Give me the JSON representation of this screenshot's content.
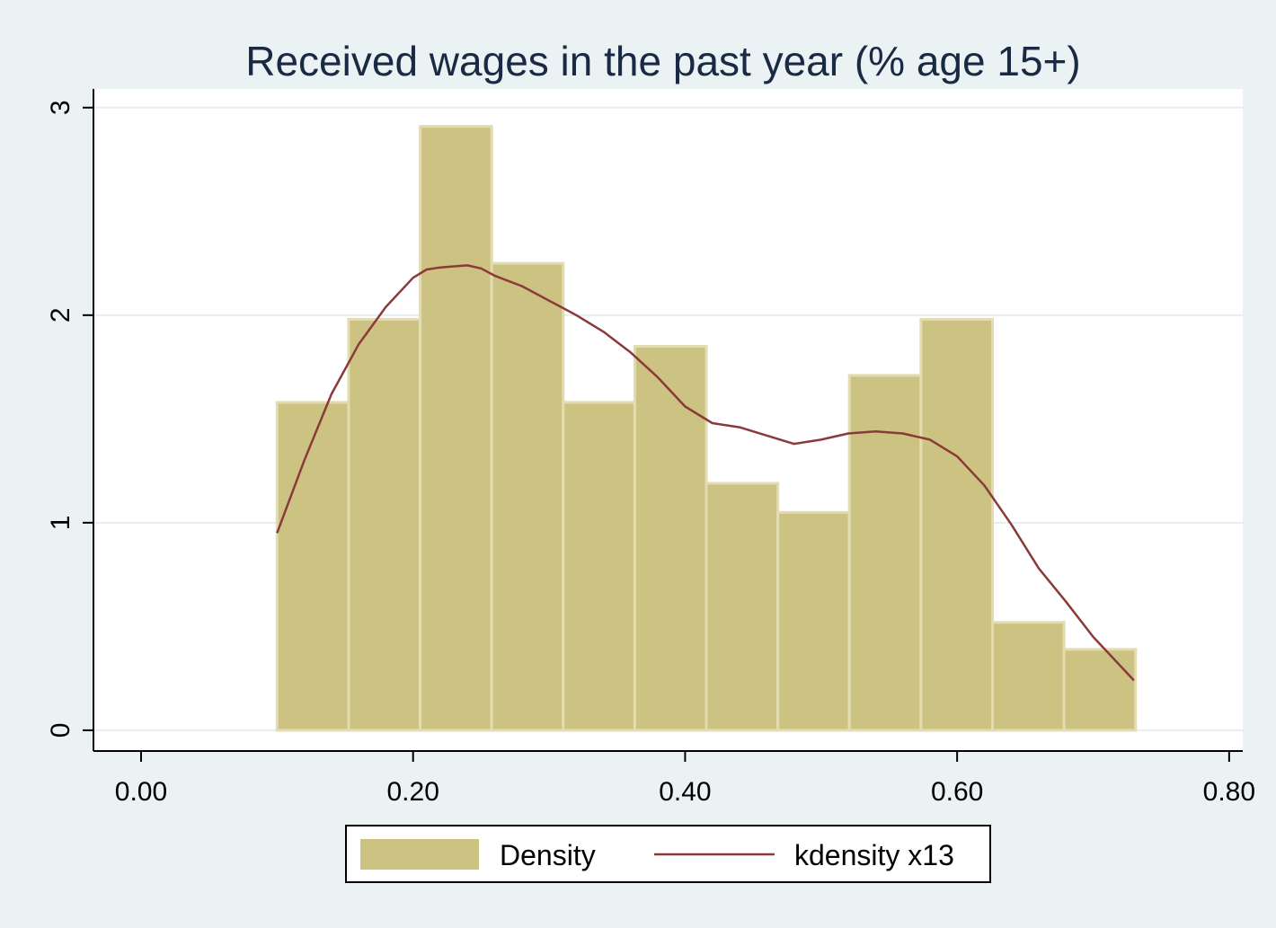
{
  "chart_data": {
    "type": "bar",
    "title": "Received wages in the past year (% age 15+)",
    "xlabel": "",
    "ylabel": "",
    "xlim": [
      -0.035,
      0.81
    ],
    "ylim": [
      -0.1,
      3.09
    ],
    "x_ticks": [
      "0.00",
      "0.20",
      "0.40",
      "0.60",
      "0.80"
    ],
    "x_tick_values": [
      0,
      0.2,
      0.4,
      0.6,
      0.8
    ],
    "y_ticks": [
      "0",
      "1",
      "2",
      "3"
    ],
    "y_tick_values": [
      0,
      1,
      2,
      3
    ],
    "grid": true,
    "legend_position": "bottom",
    "bins": [
      {
        "x0": 0.1,
        "x1": 0.1526,
        "value": 1.58
      },
      {
        "x0": 0.1526,
        "x1": 0.2052,
        "value": 1.98
      },
      {
        "x0": 0.2052,
        "x1": 0.2578,
        "value": 2.91
      },
      {
        "x0": 0.2578,
        "x1": 0.3104,
        "value": 2.25
      },
      {
        "x0": 0.3104,
        "x1": 0.363,
        "value": 1.58
      },
      {
        "x0": 0.363,
        "x1": 0.4156,
        "value": 1.85
      },
      {
        "x0": 0.4156,
        "x1": 0.4682,
        "value": 1.19
      },
      {
        "x0": 0.4682,
        "x1": 0.5208,
        "value": 1.05
      },
      {
        "x0": 0.5208,
        "x1": 0.5734,
        "value": 1.71
      },
      {
        "x0": 0.5734,
        "x1": 0.626,
        "value": 1.98
      },
      {
        "x0": 0.626,
        "x1": 0.6786,
        "value": 0.52
      },
      {
        "x0": 0.6786,
        "x1": 0.7312,
        "value": 0.39
      }
    ],
    "series": [
      {
        "name": "Density",
        "kind": "histogram",
        "color": "#ccc383"
      },
      {
        "name": "kdensity x13",
        "kind": "line",
        "color": "#8b3a3a",
        "x": [
          0.1,
          0.12,
          0.14,
          0.16,
          0.18,
          0.2,
          0.21,
          0.22,
          0.23,
          0.24,
          0.25,
          0.26,
          0.28,
          0.3,
          0.32,
          0.34,
          0.36,
          0.38,
          0.4,
          0.42,
          0.44,
          0.46,
          0.48,
          0.5,
          0.52,
          0.54,
          0.56,
          0.58,
          0.6,
          0.62,
          0.64,
          0.66,
          0.68,
          0.7,
          0.73
        ],
        "y": [
          0.95,
          1.3,
          1.62,
          1.86,
          2.04,
          2.18,
          2.22,
          2.23,
          2.235,
          2.24,
          2.225,
          2.19,
          2.14,
          2.07,
          2.0,
          1.92,
          1.82,
          1.7,
          1.56,
          1.48,
          1.46,
          1.42,
          1.38,
          1.4,
          1.43,
          1.44,
          1.43,
          1.4,
          1.32,
          1.18,
          0.99,
          0.78,
          0.62,
          0.45,
          0.24
        ]
      }
    ]
  },
  "legend": {
    "density_label": "Density",
    "kdensity_label": "kdensity x13"
  }
}
